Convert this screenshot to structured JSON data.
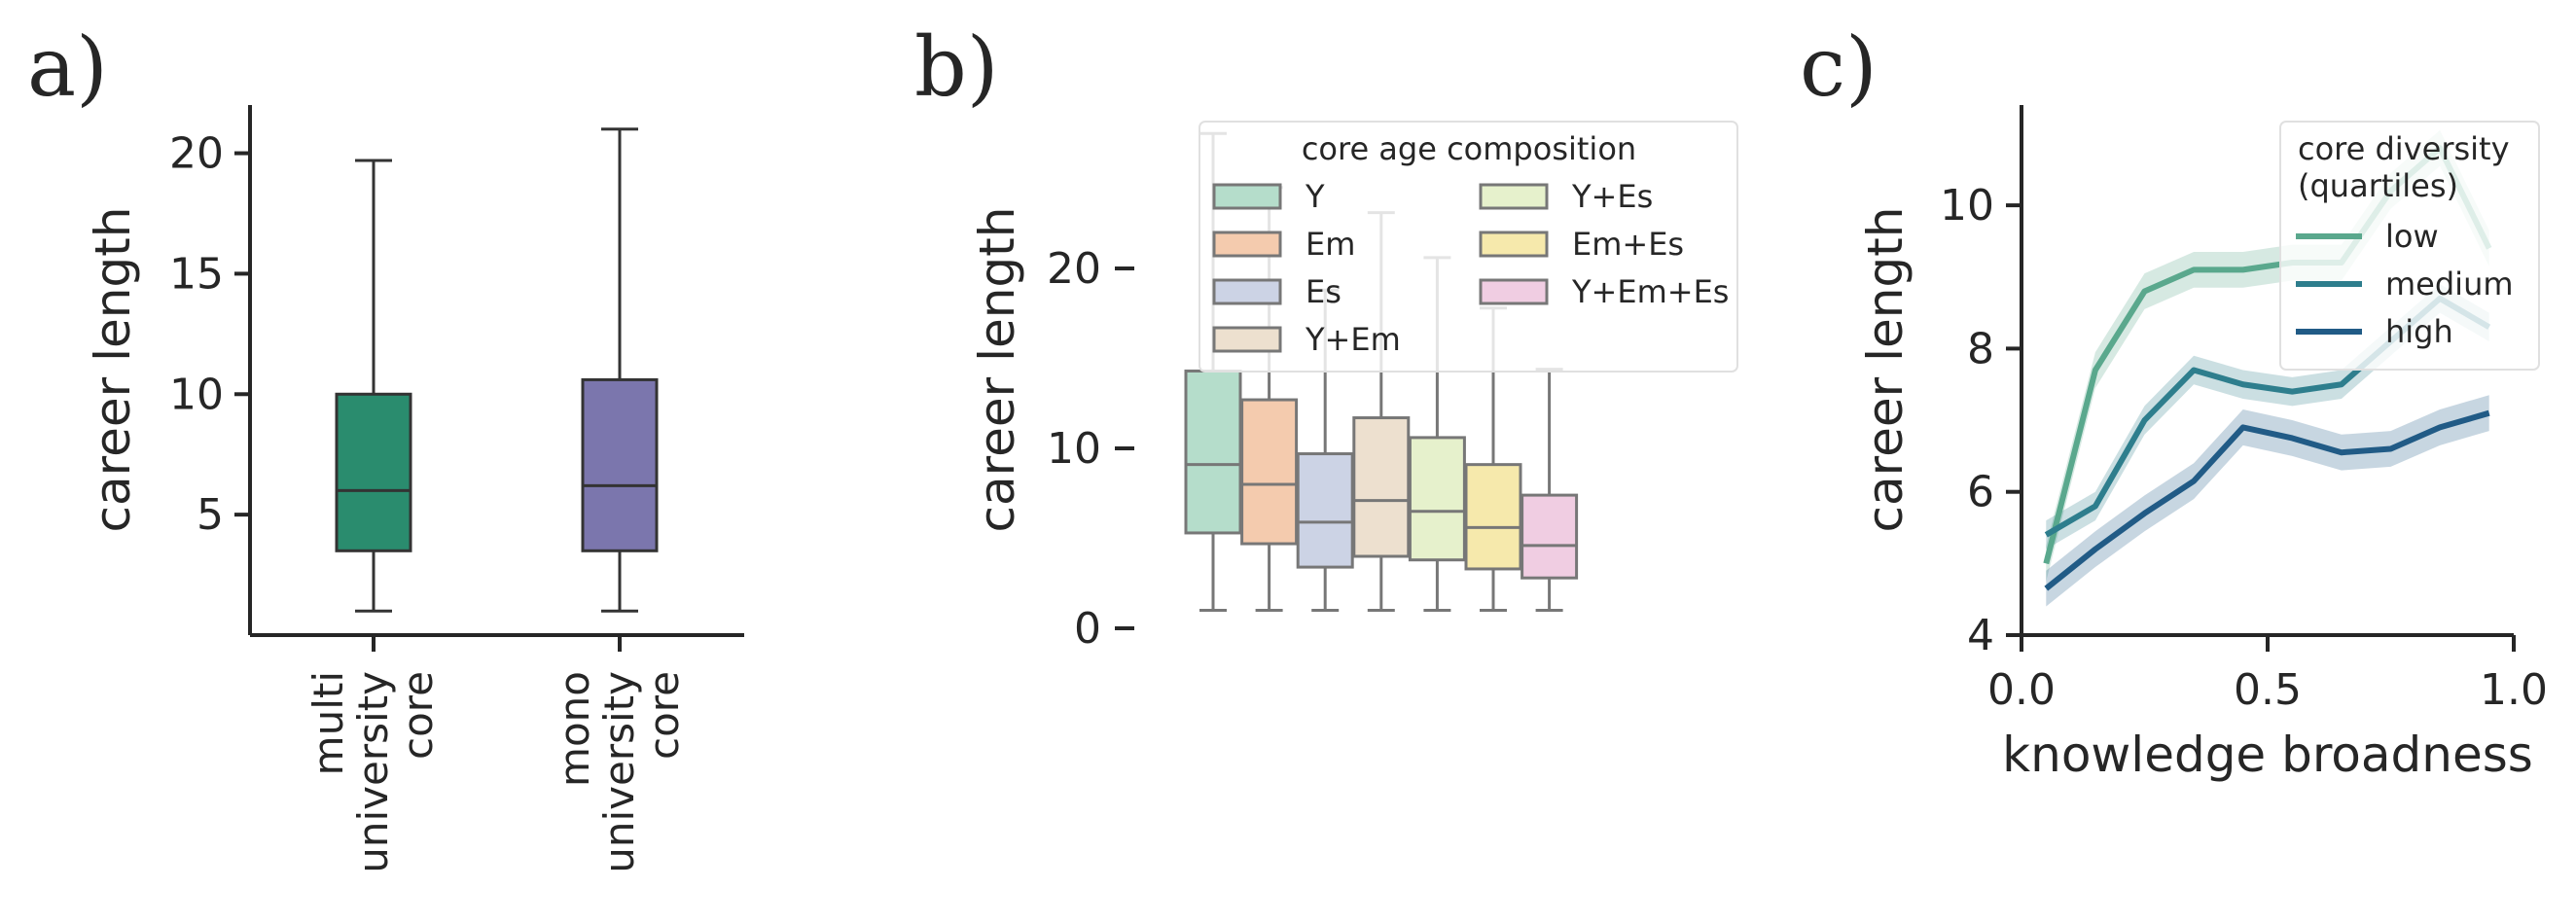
{
  "chart_data": [
    {
      "panel_label": "a)",
      "type": "box",
      "ylabel": "career length",
      "yticks": [
        5,
        10,
        15,
        20
      ],
      "ylim": [
        0,
        22
      ],
      "categories": [
        "multi\nuniversity\ncore",
        "mono\nuniversity\ncore"
      ],
      "boxes": [
        {
          "whisker_low": 1.0,
          "q1": 3.5,
          "median": 6.0,
          "q3": 10.0,
          "whisker_high": 19.7,
          "color": "#2a8c6e"
        },
        {
          "whisker_low": 1.0,
          "q1": 3.5,
          "median": 6.2,
          "q3": 10.6,
          "whisker_high": 21.0,
          "color": "#7b76ad"
        }
      ]
    },
    {
      "panel_label": "b)",
      "type": "box",
      "ylabel": "career length",
      "yticks": [
        0,
        10,
        20
      ],
      "ylim": [
        -1,
        29
      ],
      "legend": {
        "title": "core age composition",
        "placement": "upper-right"
      },
      "series": [
        {
          "name": "Y",
          "whisker_low": 1.0,
          "q1": 5.3,
          "median": 9.1,
          "q3": 14.3,
          "whisker_high": 27.5,
          "color": "#b5ddcb"
        },
        {
          "name": "Em",
          "whisker_low": 1.0,
          "q1": 4.7,
          "median": 8.0,
          "q3": 12.7,
          "whisker_high": 24.5,
          "color": "#f4cbae"
        },
        {
          "name": "Es",
          "whisker_low": 1.0,
          "q1": 3.4,
          "median": 5.9,
          "q3": 9.7,
          "whisker_high": 18.8,
          "color": "#ccd3e5"
        },
        {
          "name": "Y+Em",
          "whisker_low": 1.0,
          "q1": 4.0,
          "median": 7.1,
          "q3": 11.7,
          "whisker_high": 23.1,
          "color": "#ede0cf"
        },
        {
          "name": "Y+Es",
          "whisker_low": 1.0,
          "q1": 3.8,
          "median": 6.5,
          "q3": 10.6,
          "whisker_high": 20.6,
          "color": "#e6f1cc"
        },
        {
          "name": "Em+Es",
          "whisker_low": 1.0,
          "q1": 3.3,
          "median": 5.6,
          "q3": 9.1,
          "whisker_high": 17.8,
          "color": "#f6e9ac"
        },
        {
          "name": "Y+Em+Es",
          "whisker_low": 1.0,
          "q1": 2.8,
          "median": 4.6,
          "q3": 7.4,
          "whisker_high": 14.4,
          "color": "#f0cde2"
        }
      ]
    },
    {
      "panel_label": "c)",
      "type": "line",
      "xlabel": "knowledge broadness",
      "ylabel": "career length",
      "xlim": [
        0,
        1
      ],
      "ylim": [
        4,
        11.4
      ],
      "xticks": [
        "0.0",
        "0.5",
        "1.0"
      ],
      "yticks": [
        4,
        6,
        8,
        10
      ],
      "legend": {
        "title": "core diversity\n(quartiles)",
        "placement": "upper-right"
      },
      "x": [
        0.05,
        0.15,
        0.25,
        0.35,
        0.45,
        0.55,
        0.65,
        0.75,
        0.85,
        0.95
      ],
      "series": [
        {
          "name": "low",
          "color": "#5aa88d",
          "values": [
            5.0,
            7.7,
            8.8,
            9.1,
            9.1,
            9.2,
            9.2,
            10.2,
            10.8,
            9.4
          ],
          "band": 0.25
        },
        {
          "name": "medium",
          "color": "#2e7e8d",
          "values": [
            5.4,
            5.8,
            7.0,
            7.7,
            7.5,
            7.4,
            7.5,
            8.1,
            8.7,
            8.3
          ],
          "band": 0.2
        },
        {
          "name": "high",
          "color": "#215b86",
          "values": [
            4.65,
            5.2,
            5.7,
            6.15,
            6.9,
            6.75,
            6.55,
            6.6,
            6.9,
            7.1
          ],
          "band": 0.25
        }
      ]
    }
  ]
}
